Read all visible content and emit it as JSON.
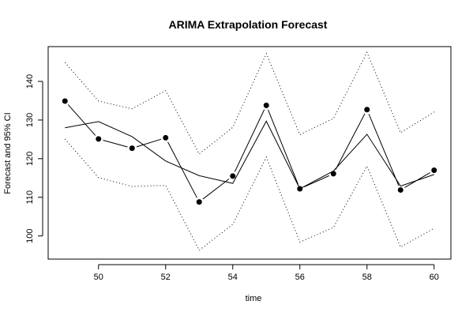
{
  "chart_data": {
    "type": "line",
    "title": "ARIMA Extrapolation Forecast",
    "xlabel": "time",
    "ylabel": "Forecast and 95% CI",
    "xlim": [
      48.5,
      60.5
    ],
    "ylim": [
      94,
      149
    ],
    "x_ticks": [
      50,
      52,
      54,
      56,
      58,
      60
    ],
    "y_ticks": [
      100,
      110,
      120,
      130,
      140
    ],
    "x": [
      49,
      50,
      51,
      52,
      53,
      54,
      55,
      56,
      57,
      58,
      59,
      60
    ],
    "series": [
      {
        "role": "observed",
        "style": "points-with-line",
        "color": "#000000",
        "values": [
          134.9,
          125.1,
          122.7,
          125.4,
          108.8,
          115.5,
          133.8,
          112.2,
          116.1,
          132.7,
          111.9,
          117.0
        ]
      },
      {
        "role": "forecast",
        "style": "solid",
        "color": "#000000",
        "values": [
          128.0,
          129.6,
          125.7,
          119.4,
          115.6,
          113.6,
          129.7,
          112.2,
          116.8,
          126.3,
          112.9,
          115.9
        ]
      },
      {
        "role": "upper-95",
        "style": "dotted",
        "color": "#000000",
        "values": [
          144.9,
          134.9,
          132.9,
          137.6,
          121.2,
          128.1,
          147.2,
          126.2,
          130.4,
          147.5,
          126.7,
          132.1
        ]
      },
      {
        "role": "lower-95",
        "style": "dotted",
        "color": "#000000",
        "values": [
          125.1,
          115.1,
          112.8,
          113.1,
          96.3,
          103.0,
          120.4,
          98.4,
          102.2,
          118.1,
          97.1,
          102.0
        ]
      }
    ],
    "grid": false,
    "legend": "none"
  }
}
